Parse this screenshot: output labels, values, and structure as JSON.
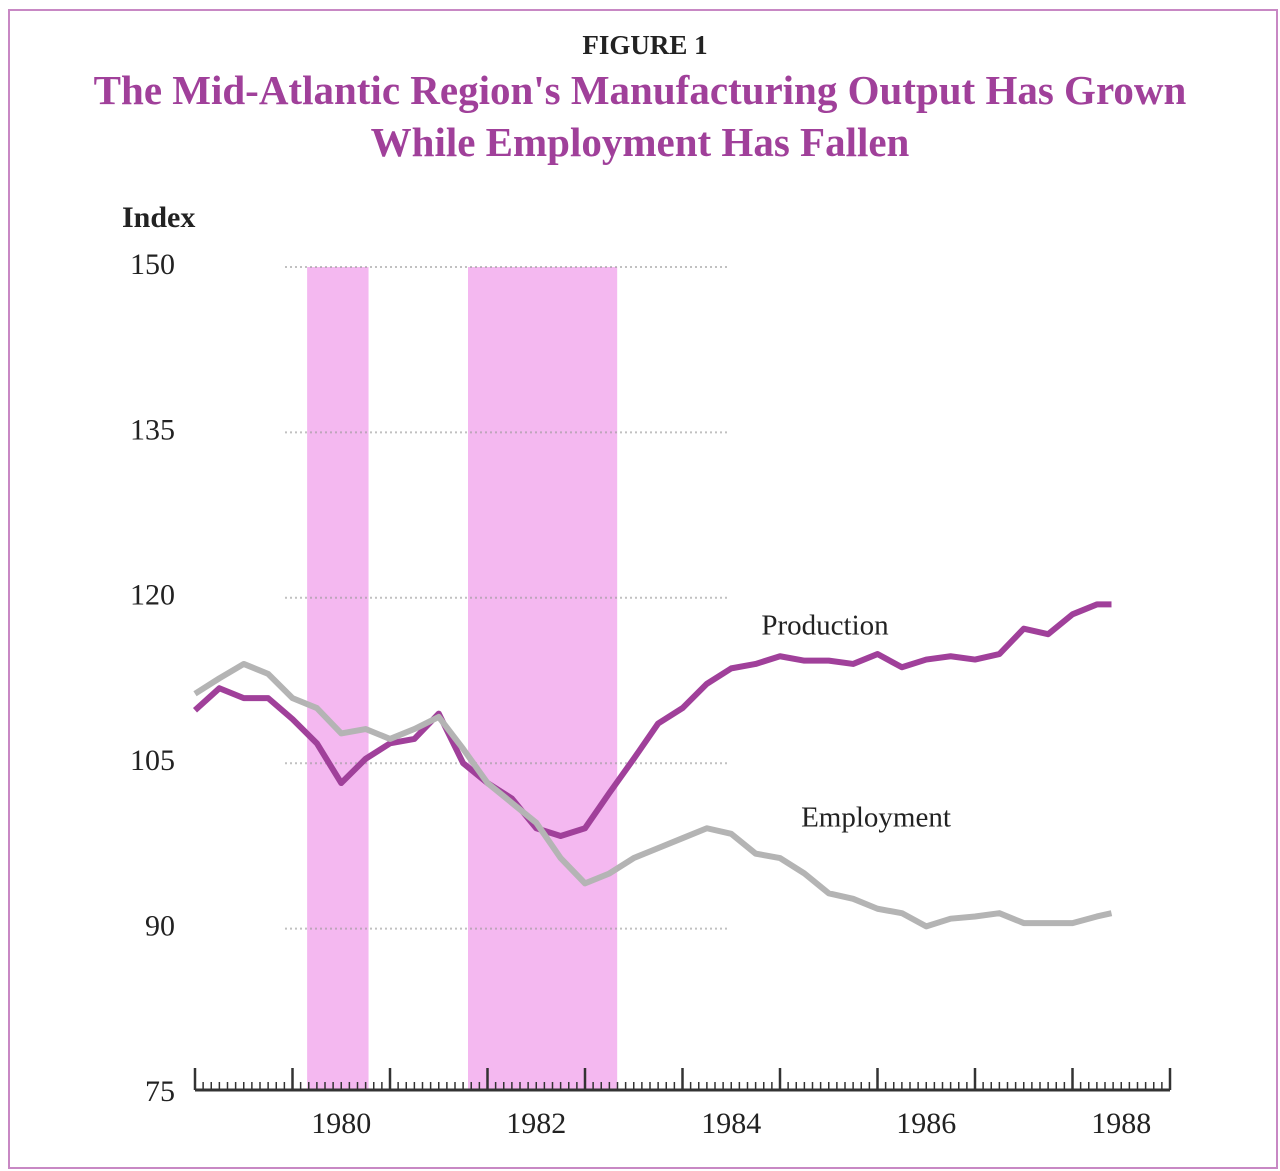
{
  "chart_data": {
    "type": "line",
    "figure_label": "FIGURE 1",
    "title": "The Mid-Atlantic Region's Manufacturing Output Has Grown While Employment Has Fallen",
    "y_label": "Index",
    "x": [
      1979,
      1979.25,
      1979.5,
      1979.75,
      1980,
      1980.25,
      1980.5,
      1980.75,
      1981,
      1981.25,
      1981.5,
      1981.75,
      1982,
      1982.25,
      1982.5,
      1982.75,
      1983,
      1983.25,
      1983.5,
      1983.75,
      1984,
      1984.25,
      1984.5,
      1984.75,
      1985,
      1985.25,
      1985.5,
      1985.75,
      1986,
      1986.25,
      1986.5,
      1986.75,
      1987,
      1987.25,
      1987.5,
      1987.75,
      1988,
      1988.25,
      1988.4
    ],
    "series": [
      {
        "name": "Production",
        "color": "#a0409a",
        "values": [
          109.8,
          111.8,
          110.9,
          110.9,
          109.0,
          106.8,
          103.2,
          105.4,
          106.8,
          107.2,
          109.5,
          105.0,
          103.2,
          101.8,
          99.1,
          98.4,
          99.1,
          102.3,
          105.4,
          108.6,
          110.0,
          112.2,
          113.6,
          114.0,
          114.7,
          114.3,
          114.3,
          114.0,
          114.9,
          113.7,
          114.4,
          114.7,
          114.4,
          114.9,
          117.2,
          116.7,
          118.5,
          119.4,
          119.4
        ]
      },
      {
        "name": "Employment",
        "color": "#b4b4b4",
        "values": [
          111.3,
          112.7,
          114.0,
          113.1,
          110.9,
          110.0,
          107.7,
          108.1,
          107.2,
          108.1,
          109.2,
          106.3,
          103.2,
          101.4,
          99.6,
          96.4,
          94.1,
          95.0,
          96.4,
          97.3,
          98.2,
          99.1,
          98.6,
          96.8,
          96.4,
          95.0,
          93.2,
          92.7,
          91.8,
          91.4,
          90.2,
          90.9,
          91.1,
          91.4,
          90.5,
          90.5,
          90.5,
          91.1,
          91.4
        ]
      }
    ],
    "shaded_periods": [
      [
        1980.15,
        1980.78
      ],
      [
        1981.8,
        1983.33
      ]
    ],
    "shade_color": "#f4b8f0",
    "xlim": [
      1979,
      1989
    ],
    "xticks": [
      {
        "value": 1980.5,
        "label": "1980"
      },
      {
        "value": 1982.5,
        "label": "1982"
      },
      {
        "value": 1984.5,
        "label": "1984"
      },
      {
        "value": 1986.5,
        "label": "1986"
      },
      {
        "value": 1988.5,
        "label": "1988"
      }
    ],
    "ylim": [
      75,
      150
    ],
    "yticks": [
      75,
      90,
      105,
      120,
      135,
      150
    ],
    "grid": true
  }
}
